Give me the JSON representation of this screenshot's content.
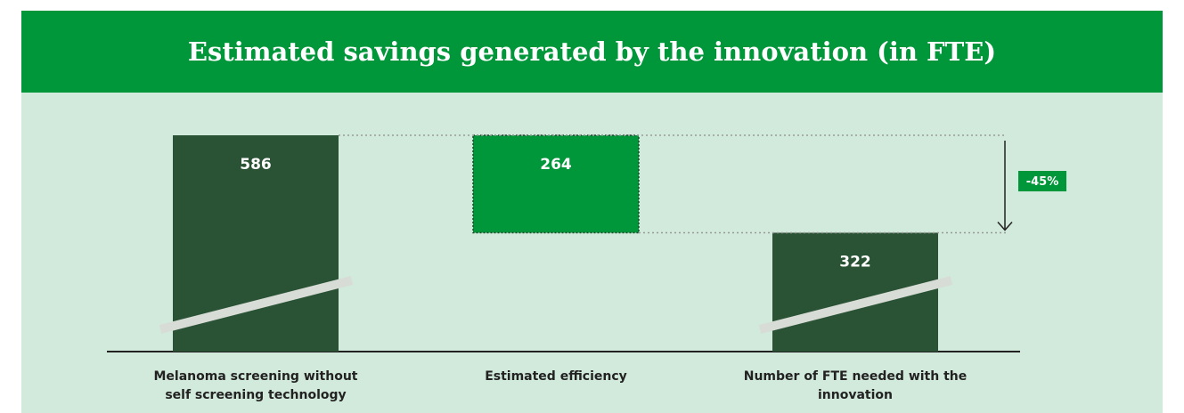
{
  "chart_data": {
    "type": "waterfall",
    "title": "Estimated savings generated by the innovation (in FTE)",
    "categories": [
      "Melanoma screening without self screening technology",
      "Estimated efficiency",
      "Number of FTE needed with the innovation"
    ],
    "values": [
      586,
      264,
      322
    ],
    "measures": [
      "total",
      "decrease",
      "total"
    ],
    "colors": [
      "#2a5234",
      "#00963a",
      "#2a5234"
    ],
    "annotation": "-45%"
  }
}
